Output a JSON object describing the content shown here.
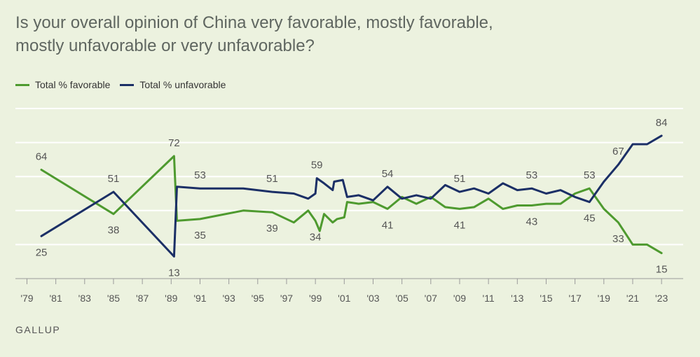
{
  "title_line1": "Is your overall opinion of China very favorable, mostly favorable,",
  "title_line2": "mostly unfavorable or very unfavorable?",
  "source": "GALLUP",
  "colors": {
    "favorable": "#4e9a2f",
    "unfavorable": "#1b2f66",
    "background": "#ecf2df",
    "grid": "#ffffff",
    "axis": "#9a9a9a",
    "text": "#555555"
  },
  "chart_data": {
    "type": "line",
    "title": "Is your overall opinion of China very favorable, mostly favorable, mostly unfavorable or very unfavorable?",
    "xlim": [
      1978.2,
      2024.5
    ],
    "ylim": [
      0,
      100
    ],
    "grid": true,
    "legend_position": "top-left",
    "x_tick_values": [
      1979,
      1981,
      1983,
      1985,
      1987,
      1989,
      1991,
      1993,
      1995,
      1997,
      1999,
      2001,
      2003,
      2005,
      2007,
      2009,
      2011,
      2013,
      2015,
      2017,
      2019,
      2021,
      2023
    ],
    "x_tick_labels": [
      "'79",
      "'81",
      "'83",
      "'85",
      "'87",
      "'89",
      "'91",
      "'93",
      "'95",
      "'97",
      "'99",
      "'01",
      "'03",
      "'05",
      "'07",
      "'09",
      "'11",
      "'13",
      "'15",
      "'17",
      "'19",
      "'21",
      "'23"
    ],
    "series": [
      {
        "name": "Total % favorable",
        "color": "#4e9a2f",
        "points": [
          [
            1980.0,
            64
          ],
          [
            1985.0,
            38
          ],
          [
            1989.2,
            72
          ],
          [
            1989.4,
            34
          ],
          [
            1991.0,
            35
          ],
          [
            1994.0,
            40
          ],
          [
            1996.0,
            39
          ],
          [
            1997.5,
            33
          ],
          [
            1998.5,
            40
          ],
          [
            1999.0,
            34
          ],
          [
            1999.3,
            28
          ],
          [
            1999.6,
            38
          ],
          [
            2000.2,
            33
          ],
          [
            2000.5,
            35
          ],
          [
            2001.0,
            36
          ],
          [
            2001.2,
            45
          ],
          [
            2002.0,
            44
          ],
          [
            2003.0,
            45
          ],
          [
            2004.0,
            41
          ],
          [
            2005.0,
            48
          ],
          [
            2006.0,
            44
          ],
          [
            2007.0,
            48
          ],
          [
            2008.0,
            42
          ],
          [
            2009.0,
            41
          ],
          [
            2010.0,
            42
          ],
          [
            2011.0,
            47
          ],
          [
            2012.0,
            41
          ],
          [
            2013.0,
            43
          ],
          [
            2014.0,
            43
          ],
          [
            2015.0,
            44
          ],
          [
            2016.0,
            44
          ],
          [
            2017.0,
            50
          ],
          [
            2018.0,
            53
          ],
          [
            2019.0,
            41
          ],
          [
            2020.0,
            33
          ],
          [
            2021.0,
            20
          ],
          [
            2022.0,
            20
          ],
          [
            2023.0,
            15
          ]
        ]
      },
      {
        "name": "Total % unfavorable",
        "color": "#1b2f66",
        "points": [
          [
            1980.0,
            25
          ],
          [
            1985.0,
            51
          ],
          [
            1989.2,
            13
          ],
          [
            1989.4,
            54
          ],
          [
            1991.0,
            53
          ],
          [
            1994.0,
            53
          ],
          [
            1996.0,
            51
          ],
          [
            1997.5,
            50
          ],
          [
            1998.5,
            47
          ],
          [
            1999.0,
            50
          ],
          [
            1999.1,
            59
          ],
          [
            1999.6,
            56
          ],
          [
            2000.2,
            52
          ],
          [
            2000.3,
            57
          ],
          [
            2000.9,
            58
          ],
          [
            2001.2,
            48
          ],
          [
            2002.0,
            49
          ],
          [
            2003.0,
            46
          ],
          [
            2004.0,
            54
          ],
          [
            2005.0,
            47
          ],
          [
            2006.0,
            49
          ],
          [
            2007.0,
            47
          ],
          [
            2008.0,
            55
          ],
          [
            2009.0,
            51
          ],
          [
            2010.0,
            53
          ],
          [
            2011.0,
            50
          ],
          [
            2012.0,
            56
          ],
          [
            2013.0,
            52
          ],
          [
            2014.0,
            53
          ],
          [
            2015.0,
            50
          ],
          [
            2016.0,
            52
          ],
          [
            2017.0,
            48
          ],
          [
            2018.0,
            45
          ],
          [
            2019.0,
            57
          ],
          [
            2020.0,
            67
          ],
          [
            2021.0,
            79
          ],
          [
            2022.0,
            79
          ],
          [
            2023.0,
            84
          ]
        ]
      }
    ],
    "value_labels": [
      {
        "series": "Total % favorable",
        "x": 1980.0,
        "value": "64",
        "side": "above"
      },
      {
        "series": "Total % favorable",
        "x": 1985.0,
        "value": "38",
        "side": "below"
      },
      {
        "series": "Total % favorable",
        "x": 1989.2,
        "value": "72",
        "side": "above"
      },
      {
        "series": "Total % favorable",
        "x": 1991.0,
        "value": "35",
        "side": "below"
      },
      {
        "series": "Total % favorable",
        "x": 1996.0,
        "value": "39",
        "side": "below"
      },
      {
        "series": "Total % favorable",
        "x": 1999.0,
        "value": "34",
        "side": "below"
      },
      {
        "series": "Total % favorable",
        "x": 2004.0,
        "value": "41",
        "side": "below"
      },
      {
        "series": "Total % favorable",
        "x": 2009.0,
        "value": "41",
        "side": "below"
      },
      {
        "series": "Total % favorable",
        "x": 2014.0,
        "value": "43",
        "side": "below"
      },
      {
        "series": "Total % favorable",
        "x": 2018.0,
        "value": "53",
        "side": "above"
      },
      {
        "series": "Total % favorable",
        "x": 2020.0,
        "value": "33",
        "side": "below"
      },
      {
        "series": "Total % favorable",
        "x": 2023.0,
        "value": "15",
        "side": "below"
      },
      {
        "series": "Total % unfavorable",
        "x": 1980.0,
        "value": "25",
        "side": "below"
      },
      {
        "series": "Total % unfavorable",
        "x": 1985.0,
        "value": "51",
        "side": "above"
      },
      {
        "series": "Total % unfavorable",
        "x": 1989.2,
        "value": "13",
        "side": "below"
      },
      {
        "series": "Total % unfavorable",
        "x": 1991.0,
        "value": "53",
        "side": "above"
      },
      {
        "series": "Total % unfavorable",
        "x": 1996.0,
        "value": "51",
        "side": "above"
      },
      {
        "series": "Total % unfavorable",
        "x": 1999.1,
        "value": "59",
        "side": "above"
      },
      {
        "series": "Total % unfavorable",
        "x": 2004.0,
        "value": "54",
        "side": "above"
      },
      {
        "series": "Total % unfavorable",
        "x": 2009.0,
        "value": "51",
        "side": "above"
      },
      {
        "series": "Total % unfavorable",
        "x": 2014.0,
        "value": "53",
        "side": "above"
      },
      {
        "series": "Total % unfavorable",
        "x": 2018.0,
        "value": "45",
        "side": "below"
      },
      {
        "series": "Total % unfavorable",
        "x": 2020.0,
        "value": "67",
        "side": "above"
      },
      {
        "series": "Total % unfavorable",
        "x": 2023.0,
        "value": "84",
        "side": "above"
      }
    ]
  }
}
